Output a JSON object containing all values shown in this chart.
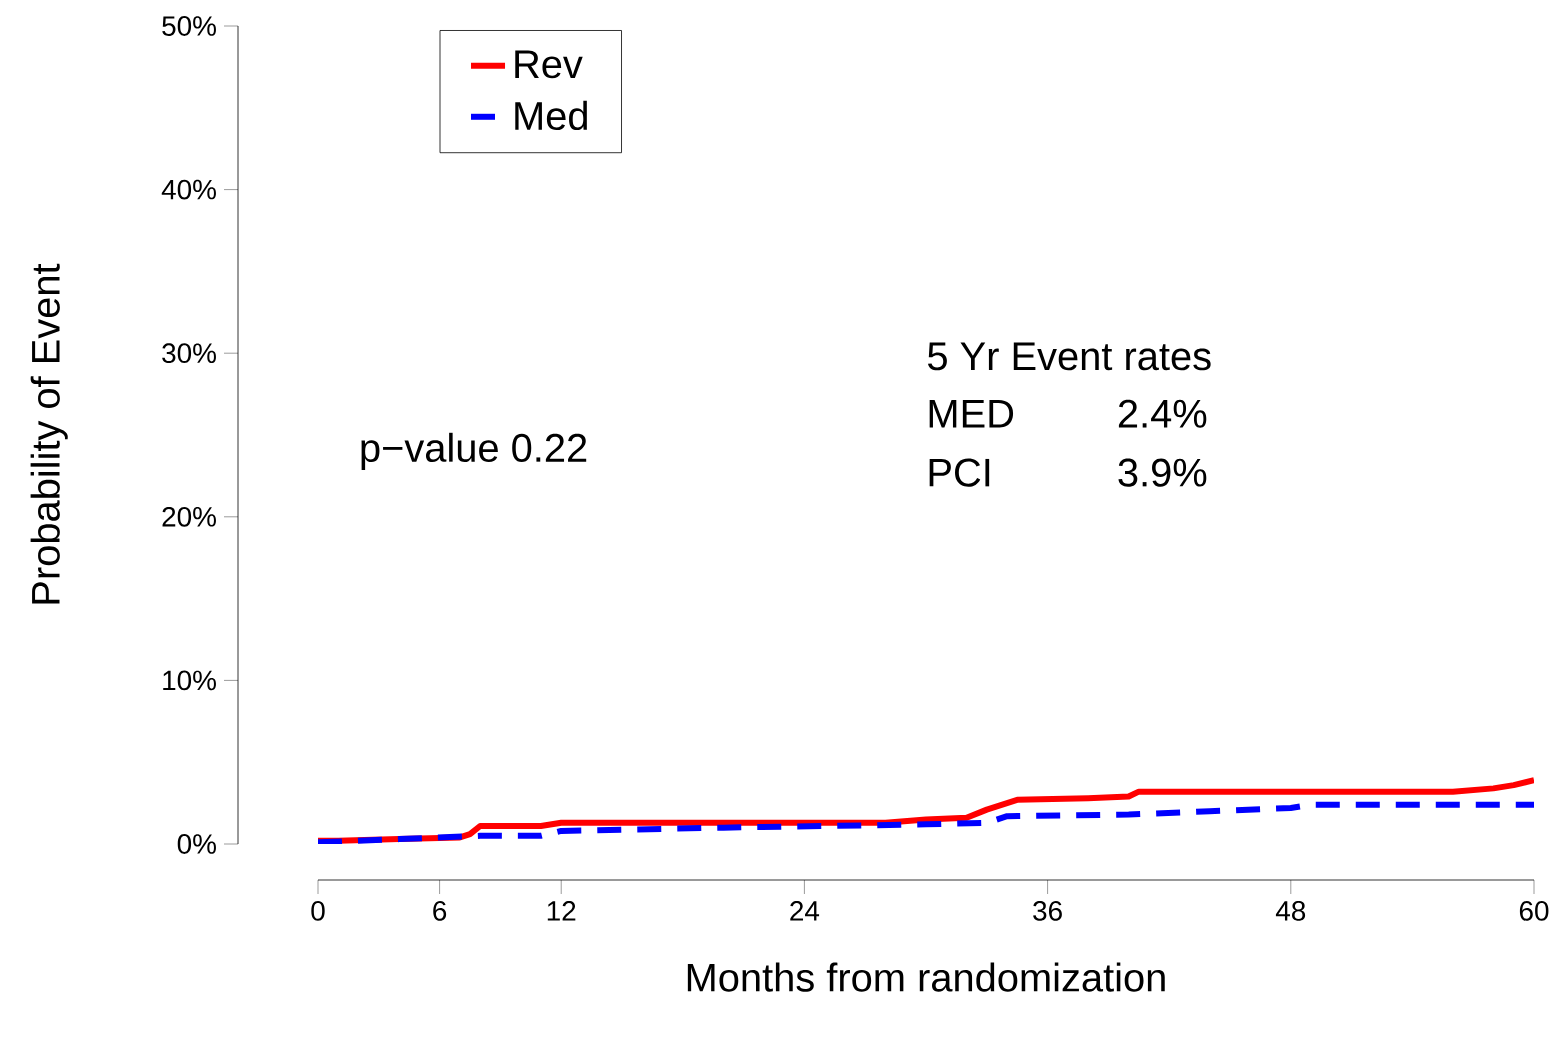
{
  "chart_data": {
    "type": "line",
    "xlabel": "Months from randomization",
    "ylabel": "Probability of Event",
    "xlim": [
      0,
      60
    ],
    "ylim": [
      0,
      50
    ],
    "xticks": [
      0,
      6,
      12,
      24,
      36,
      48,
      60
    ],
    "yticks": [
      {
        "value": 0,
        "label": "0%"
      },
      {
        "value": 10,
        "label": "10%"
      },
      {
        "value": 20,
        "label": "20%"
      },
      {
        "value": 30,
        "label": "30%"
      },
      {
        "value": 40,
        "label": "40%"
      },
      {
        "value": 50,
        "label": "50%"
      }
    ],
    "legend": "top left",
    "grid": false,
    "series": [
      {
        "name": "Rev",
        "color": "#ff0000",
        "line_style": "solid",
        "x": [
          0,
          1,
          4,
          7,
          7.5,
          8,
          11,
          12,
          28,
          30,
          32,
          33,
          34.5,
          38,
          40,
          40.5,
          56,
          58,
          59,
          60
        ],
        "values": [
          0.2,
          0.2,
          0.3,
          0.4,
          0.6,
          1.1,
          1.1,
          1.3,
          1.3,
          1.5,
          1.6,
          2.1,
          2.7,
          2.8,
          2.9,
          3.2,
          3.2,
          3.4,
          3.6,
          3.9
        ]
      },
      {
        "name": "Med",
        "color": "#0000ff",
        "line_style": "dashed",
        "x": [
          0,
          4,
          8,
          11,
          12,
          20,
          30,
          33,
          34,
          40,
          44,
          48,
          49,
          60
        ],
        "values": [
          0.1,
          0.3,
          0.5,
          0.5,
          0.8,
          1.0,
          1.2,
          1.3,
          1.7,
          1.8,
          2.0,
          2.2,
          2.4,
          2.4
        ]
      }
    ],
    "annotations": [
      "p−value  0.22",
      "5 Yr Event rates",
      "MED",
      "2.4%",
      "PCI",
      "3.9%"
    ]
  }
}
